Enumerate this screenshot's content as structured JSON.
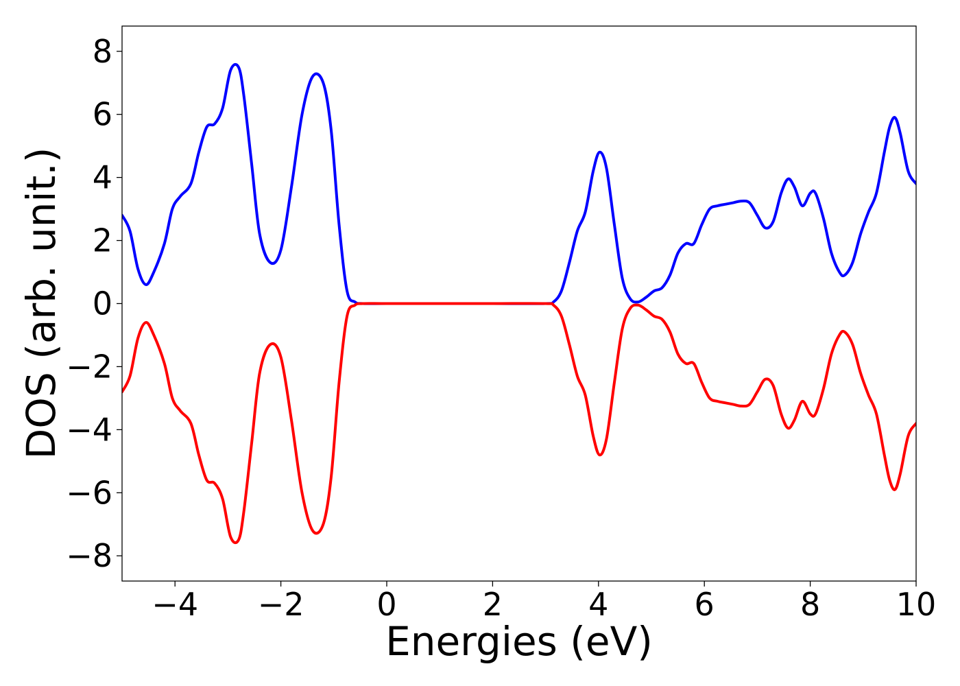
{
  "chart_data": {
    "type": "line",
    "title": "",
    "xlabel": "Energies (eV)",
    "ylabel": "DOS (arb. unit.)",
    "xlim": [
      -5,
      10
    ],
    "ylim": [
      -8.8,
      8.8
    ],
    "xticks": [
      -4,
      -2,
      0,
      2,
      4,
      6,
      8,
      10
    ],
    "xtick_labels": [
      "−4",
      "−2",
      "0",
      "2",
      "4",
      "6",
      "8",
      "10"
    ],
    "yticks": [
      -8,
      -6,
      -4,
      -2,
      0,
      2,
      4,
      6,
      8
    ],
    "ytick_labels": [
      "−8",
      "−6",
      "−4",
      "−2",
      "0",
      "2",
      "4",
      "6",
      "8"
    ],
    "grid": false,
    "legend": false,
    "series": [
      {
        "color": "#0000ff",
        "x": [
          -5.0,
          -4.85,
          -4.7,
          -4.55,
          -4.4,
          -4.2,
          -4.05,
          -3.9,
          -3.7,
          -3.55,
          -3.4,
          -3.25,
          -3.1,
          -2.95,
          -2.8,
          -2.7,
          -2.55,
          -2.4,
          -2.2,
          -2.0,
          -1.8,
          -1.6,
          -1.4,
          -1.2,
          -1.05,
          -0.9,
          -0.75,
          -0.6,
          -0.45,
          0.0,
          1.0,
          2.0,
          3.0,
          3.15,
          3.3,
          3.45,
          3.6,
          3.75,
          3.9,
          4.02,
          4.15,
          4.3,
          4.45,
          4.6,
          4.75,
          4.9,
          5.05,
          5.2,
          5.35,
          5.5,
          5.65,
          5.8,
          5.95,
          6.1,
          6.25,
          6.4,
          6.55,
          6.7,
          6.85,
          7.0,
          7.15,
          7.3,
          7.45,
          7.58,
          7.7,
          7.85,
          8.0,
          8.1,
          8.25,
          8.4,
          8.55,
          8.65,
          8.8,
          8.95,
          9.1,
          9.25,
          9.4,
          9.5,
          9.6,
          9.7,
          9.85,
          10.0
        ],
        "y": [
          2.8,
          2.3,
          1.1,
          0.6,
          1.0,
          1.9,
          3.0,
          3.4,
          3.8,
          4.8,
          5.6,
          5.7,
          6.2,
          7.4,
          7.5,
          6.6,
          4.4,
          2.2,
          1.3,
          1.7,
          3.7,
          6.0,
          7.2,
          7.0,
          5.5,
          2.5,
          0.4,
          0.05,
          0.0,
          0.0,
          0.0,
          0.0,
          0.0,
          0.05,
          0.4,
          1.3,
          2.3,
          2.9,
          4.2,
          4.8,
          4.3,
          2.5,
          0.8,
          0.15,
          0.05,
          0.2,
          0.4,
          0.5,
          0.9,
          1.6,
          1.9,
          1.9,
          2.5,
          3.0,
          3.1,
          3.15,
          3.2,
          3.25,
          3.2,
          2.8,
          2.4,
          2.6,
          3.5,
          3.95,
          3.7,
          3.1,
          3.5,
          3.5,
          2.7,
          1.6,
          1.0,
          0.9,
          1.3,
          2.2,
          2.9,
          3.5,
          4.8,
          5.6,
          5.9,
          5.4,
          4.2,
          3.8
        ]
      },
      {
        "color": "#ff0000",
        "x": [
          -5.0,
          -4.85,
          -4.7,
          -4.55,
          -4.4,
          -4.2,
          -4.05,
          -3.9,
          -3.7,
          -3.55,
          -3.4,
          -3.25,
          -3.1,
          -2.95,
          -2.8,
          -2.7,
          -2.55,
          -2.4,
          -2.2,
          -2.0,
          -1.8,
          -1.6,
          -1.4,
          -1.2,
          -1.05,
          -0.9,
          -0.75,
          -0.6,
          -0.45,
          0.0,
          1.0,
          2.0,
          3.0,
          3.15,
          3.3,
          3.45,
          3.6,
          3.75,
          3.9,
          4.02,
          4.15,
          4.3,
          4.45,
          4.6,
          4.75,
          4.9,
          5.05,
          5.2,
          5.35,
          5.5,
          5.65,
          5.8,
          5.95,
          6.1,
          6.25,
          6.4,
          6.55,
          6.7,
          6.85,
          7.0,
          7.15,
          7.3,
          7.45,
          7.58,
          7.7,
          7.85,
          8.0,
          8.1,
          8.25,
          8.4,
          8.55,
          8.65,
          8.8,
          8.95,
          9.1,
          9.25,
          9.4,
          9.5,
          9.6,
          9.7,
          9.85,
          10.0
        ],
        "y": [
          -2.8,
          -2.3,
          -1.1,
          -0.6,
          -1.0,
          -1.9,
          -3.0,
          -3.4,
          -3.8,
          -4.8,
          -5.6,
          -5.7,
          -6.2,
          -7.4,
          -7.5,
          -6.6,
          -4.4,
          -2.2,
          -1.3,
          -1.7,
          -3.7,
          -6.0,
          -7.2,
          -7.0,
          -5.5,
          -2.5,
          -0.4,
          -0.05,
          0.0,
          0.0,
          0.0,
          0.0,
          0.0,
          -0.05,
          -0.4,
          -1.3,
          -2.3,
          -2.9,
          -4.2,
          -4.8,
          -4.3,
          -2.5,
          -0.8,
          -0.15,
          -0.05,
          -0.2,
          -0.4,
          -0.5,
          -0.9,
          -1.6,
          -1.9,
          -1.9,
          -2.5,
          -3.0,
          -3.1,
          -3.15,
          -3.2,
          -3.25,
          -3.2,
          -2.8,
          -2.4,
          -2.6,
          -3.5,
          -3.95,
          -3.7,
          -3.1,
          -3.5,
          -3.5,
          -2.7,
          -1.6,
          -1.0,
          -0.9,
          -1.3,
          -2.2,
          -2.9,
          -3.5,
          -4.8,
          -5.6,
          -5.9,
          -5.4,
          -4.2,
          -3.8
        ]
      }
    ]
  }
}
